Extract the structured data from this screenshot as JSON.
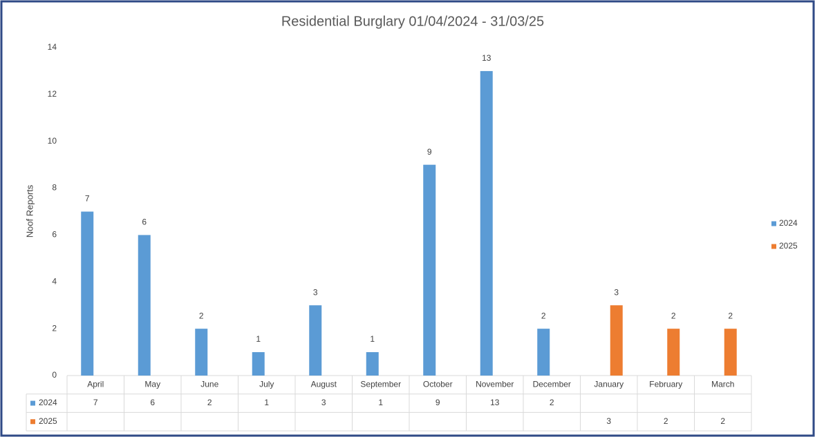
{
  "chart_data": {
    "type": "bar",
    "title": "Residential Burglary 01/04/2024 - 31/03/25",
    "y_label": "Noof Reports",
    "categories": [
      "April",
      "May",
      "June",
      "July",
      "August",
      "September",
      "October",
      "November",
      "December",
      "January",
      "February",
      "March"
    ],
    "series": [
      {
        "name": "2024",
        "color": "#5b9bd5",
        "values": [
          7,
          6,
          2,
          1,
          3,
          1,
          9,
          13,
          2,
          null,
          null,
          null
        ]
      },
      {
        "name": "2025",
        "color": "#ed7d31",
        "values": [
          null,
          null,
          null,
          null,
          null,
          null,
          null,
          null,
          null,
          3,
          2,
          2
        ]
      }
    ],
    "ylim": [
      0,
      14
    ],
    "yticks": [
      0,
      2,
      4,
      6,
      8,
      10,
      12,
      14
    ],
    "grid": false,
    "legend": "right"
  }
}
